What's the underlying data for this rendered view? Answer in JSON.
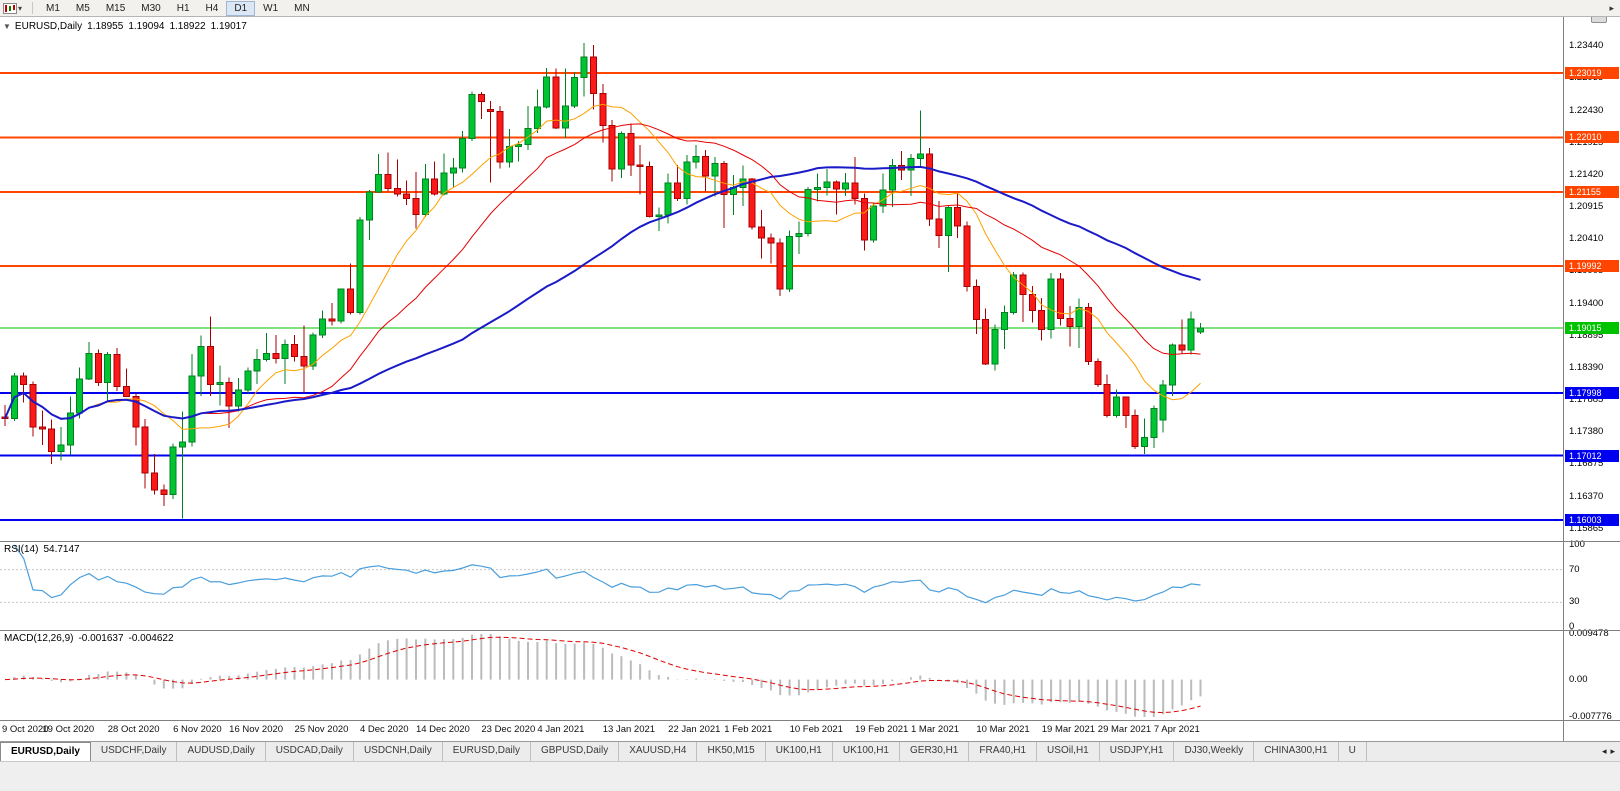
{
  "toolbar": {
    "timeframes": [
      "M1",
      "M5",
      "M15",
      "M30",
      "H1",
      "H4",
      "D1",
      "W1",
      "MN"
    ],
    "active_timeframe": "D1"
  },
  "icons": {
    "collapse": "▼",
    "toolbar_overflow": "▸",
    "tab_scroll_left": "◂",
    "tab_scroll_right": "▸"
  },
  "chart_header": {
    "symbol_period": "EURUSD,Daily",
    "open": "1.18955",
    "high": "1.19094",
    "low": "1.18922",
    "close": "1.19017"
  },
  "panels": {
    "rsi": {
      "name": "RSI(14)",
      "value": "54.7147"
    },
    "macd": {
      "name": "MACD(12,26,9)",
      "value_main": "-0.001637",
      "value_signal": "-0.004622"
    }
  },
  "chart_data": {
    "type": "candlestick",
    "symbol": "EURUSD",
    "timeframe": "Daily",
    "price_axis": {
      "max": 1.239,
      "min": 1.1572,
      "ticks": [
        "1.23440",
        "1.22935",
        "1.22430",
        "1.21925",
        "1.21420",
        "1.20915",
        "1.20410",
        "1.19905",
        "1.19400",
        "1.18895",
        "1.18390",
        "1.17885",
        "1.17380",
        "1.16875",
        "1.16370",
        "1.15865"
      ]
    },
    "colors": {
      "up_fill": "#00C432",
      "up_stroke": "#008021",
      "down_fill": "#FA1A1A",
      "down_stroke": "#A80000",
      "background": "#FFFFFF"
    },
    "h_lines": [
      {
        "price": 1.23019,
        "label": "1.23019",
        "color": "#FF4500",
        "width": 2
      },
      {
        "price": 1.2201,
        "label": "1.22010",
        "color": "#FF4500",
        "width": 2
      },
      {
        "price": 1.21155,
        "label": "1.21155",
        "color": "#FF4500",
        "width": 2
      },
      {
        "price": 1.19992,
        "label": "1.19992",
        "color": "#FF4500",
        "width": 2
      },
      {
        "price": 1.19015,
        "label": "1.19015",
        "color": "#00C300",
        "width": 1
      },
      {
        "price": 1.17998,
        "label": "1.17998",
        "color": "#0000F0",
        "width": 2
      },
      {
        "price": 1.17012,
        "label": "1.17012",
        "color": "#0000F0",
        "width": 2
      },
      {
        "price": 1.16003,
        "label": "1.16003",
        "color": "#0000F0",
        "width": 2
      }
    ],
    "moving_averages": [
      {
        "period": 10,
        "color": "#FFA000",
        "width": 1
      },
      {
        "period": 21,
        "color": "#E60000",
        "width": 1
      },
      {
        "period": 50,
        "color": "#1A1AC8",
        "width": 2
      }
    ],
    "rsi": {
      "period": 14,
      "color": "#4A9EDC",
      "range": [
        0,
        100
      ],
      "levels": [
        "100",
        "70",
        "30",
        "0"
      ],
      "level_lines": [
        70,
        30
      ]
    },
    "macd": {
      "fast": 12,
      "slow": 26,
      "signal_period": 9,
      "histogram_color": "#BBBBBB",
      "signal_color": "#E00000",
      "range": [
        -0.007776,
        0.009478
      ],
      "axis_labels": [
        "0.009478",
        "0.00",
        "-0.007776"
      ]
    },
    "x_labels": [
      [
        "9 Oct 2020",
        1
      ],
      [
        "19 Oct 2020",
        7
      ],
      [
        "28 Oct 2020",
        14
      ],
      [
        "6 Nov 2020",
        21
      ],
      [
        "16 Nov 2020",
        27
      ],
      [
        "25 Nov 2020",
        34
      ],
      [
        "4 Dec 2020",
        41
      ],
      [
        "14 Dec 2020",
        47
      ],
      [
        "23 Dec 2020",
        54
      ],
      [
        "4 Jan 2021",
        60
      ],
      [
        "13 Jan 2021",
        67
      ],
      [
        "22 Jan 2021",
        74
      ],
      [
        "1 Feb 2021",
        80
      ],
      [
        "10 Feb 2021",
        87
      ],
      [
        "19 Feb 2021",
        94
      ],
      [
        "1 Mar 2021",
        100
      ],
      [
        "10 Mar 2021",
        107
      ],
      [
        "19 Mar 2021",
        114
      ],
      [
        "29 Mar 2021",
        120
      ],
      [
        "7 Apr 2021",
        126
      ]
    ],
    "ohlc": [
      [
        1.1762,
        1.1781,
        1.1748,
        1.176
      ],
      [
        1.176,
        1.1831,
        1.1756,
        1.1826
      ],
      [
        1.1826,
        1.1832,
        1.1785,
        1.1813
      ],
      [
        1.1813,
        1.1818,
        1.1731,
        1.1746
      ],
      [
        1.1746,
        1.1772,
        1.1718,
        1.1743
      ],
      [
        1.1743,
        1.1758,
        1.1688,
        1.1708
      ],
      [
        1.1708,
        1.1746,
        1.1694,
        1.1718
      ],
      [
        1.1718,
        1.1794,
        1.1703,
        1.1768
      ],
      [
        1.1768,
        1.184,
        1.176,
        1.1822
      ],
      [
        1.1822,
        1.188,
        1.182,
        1.1862
      ],
      [
        1.1862,
        1.1868,
        1.1811,
        1.1816
      ],
      [
        1.1816,
        1.1864,
        1.1786,
        1.186
      ],
      [
        1.186,
        1.187,
        1.1803,
        1.181
      ],
      [
        1.181,
        1.1838,
        1.1793,
        1.1794
      ],
      [
        1.1794,
        1.18,
        1.1717,
        1.1746
      ],
      [
        1.1746,
        1.1759,
        1.165,
        1.1674
      ],
      [
        1.1674,
        1.1704,
        1.164,
        1.1647
      ],
      [
        1.1647,
        1.1656,
        1.1622,
        1.164
      ],
      [
        1.164,
        1.172,
        1.1633,
        1.1715
      ],
      [
        1.1715,
        1.1771,
        1.1603,
        1.1723
      ],
      [
        1.1723,
        1.1861,
        1.1716,
        1.1826
      ],
      [
        1.1826,
        1.189,
        1.1795,
        1.1873
      ],
      [
        1.1873,
        1.192,
        1.1795,
        1.1813
      ],
      [
        1.1813,
        1.1843,
        1.178,
        1.1816
      ],
      [
        1.1816,
        1.1824,
        1.1745,
        1.1779
      ],
      [
        1.1779,
        1.1823,
        1.1771,
        1.1804
      ],
      [
        1.1804,
        1.184,
        1.1799,
        1.1834
      ],
      [
        1.1834,
        1.1869,
        1.1814,
        1.1852
      ],
      [
        1.1852,
        1.1894,
        1.1849,
        1.1862
      ],
      [
        1.1862,
        1.1891,
        1.1846,
        1.1854
      ],
      [
        1.1854,
        1.1884,
        1.1814,
        1.1876
      ],
      [
        1.1876,
        1.1891,
        1.1849,
        1.1857
      ],
      [
        1.1857,
        1.1906,
        1.18,
        1.1842
      ],
      [
        1.1842,
        1.1895,
        1.1836,
        1.1891
      ],
      [
        1.1891,
        1.1929,
        1.1886,
        1.1916
      ],
      [
        1.1916,
        1.1941,
        1.1906,
        1.1913
      ],
      [
        1.1913,
        1.1964,
        1.1909,
        1.1963
      ],
      [
        1.1963,
        1.2003,
        1.1923,
        1.1926
      ],
      [
        1.1926,
        1.2076,
        1.1923,
        1.2071
      ],
      [
        1.2071,
        1.2118,
        1.204,
        1.2115
      ],
      [
        1.2115,
        1.2175,
        1.2114,
        1.2143
      ],
      [
        1.2143,
        1.2177,
        1.2117,
        1.2121
      ],
      [
        1.2121,
        1.2166,
        1.2108,
        1.2112
      ],
      [
        1.2112,
        1.2133,
        1.2095,
        1.2105
      ],
      [
        1.2105,
        1.2147,
        1.2058,
        1.208
      ],
      [
        1.208,
        1.2159,
        1.2076,
        1.2136
      ],
      [
        1.2136,
        1.2163,
        1.211,
        1.2112
      ],
      [
        1.2112,
        1.2176,
        1.211,
        1.2145
      ],
      [
        1.2145,
        1.2169,
        1.2123,
        1.2153
      ],
      [
        1.2153,
        1.2211,
        1.2146,
        1.2199
      ],
      [
        1.2199,
        1.2273,
        1.2195,
        1.2268
      ],
      [
        1.2268,
        1.2272,
        1.223,
        1.2257
      ],
      [
        1.2245,
        1.2258,
        1.213,
        1.2242
      ],
      [
        1.2242,
        1.225,
        1.2152,
        1.2162
      ],
      [
        1.2162,
        1.2214,
        1.2154,
        1.2187
      ],
      [
        1.2187,
        1.2195,
        1.2163,
        1.219
      ],
      [
        1.219,
        1.225,
        1.2181,
        1.2215
      ],
      [
        1.2215,
        1.2276,
        1.2208,
        1.2249
      ],
      [
        1.2249,
        1.231,
        1.2246,
        1.2296
      ],
      [
        1.2296,
        1.2309,
        1.2214,
        1.2216
      ],
      [
        1.2216,
        1.2309,
        1.22,
        1.225
      ],
      [
        1.225,
        1.2304,
        1.2247,
        1.2295
      ],
      [
        1.2295,
        1.2349,
        1.2265,
        1.2327
      ],
      [
        1.2327,
        1.2346,
        1.2245,
        1.227
      ],
      [
        1.227,
        1.2285,
        1.2193,
        1.222
      ],
      [
        1.222,
        1.2228,
        1.2132,
        1.2151
      ],
      [
        1.2151,
        1.221,
        1.2137,
        1.2207
      ],
      [
        1.2207,
        1.2223,
        1.214,
        1.2158
      ],
      [
        1.2158,
        1.2189,
        1.2111,
        1.2155
      ],
      [
        1.2155,
        1.2163,
        1.2075,
        1.2077
      ],
      [
        1.2077,
        1.2091,
        1.2054,
        1.2079
      ],
      [
        1.2079,
        1.2144,
        1.2066,
        1.2129
      ],
      [
        1.2129,
        1.2158,
        1.2101,
        1.2105
      ],
      [
        1.2105,
        1.2173,
        1.2096,
        1.2162
      ],
      [
        1.2162,
        1.2189,
        1.2152,
        1.2171
      ],
      [
        1.2171,
        1.2181,
        1.2116,
        1.214
      ],
      [
        1.214,
        1.217,
        1.2108,
        1.216
      ],
      [
        1.216,
        1.2164,
        1.2059,
        1.2111
      ],
      [
        1.2111,
        1.2142,
        1.2079,
        1.2122
      ],
      [
        1.2122,
        1.2157,
        1.2093,
        1.2136
      ],
      [
        1.2136,
        1.2137,
        1.2056,
        1.206
      ],
      [
        1.206,
        1.2087,
        1.2011,
        1.2043
      ],
      [
        1.2043,
        1.205,
        1.2003,
        1.2035
      ],
      [
        1.2035,
        1.2042,
        1.1952,
        1.1963
      ],
      [
        1.1963,
        1.2055,
        1.1958,
        1.2045
      ],
      [
        1.2045,
        1.2069,
        1.2018,
        1.205
      ],
      [
        1.205,
        1.2123,
        1.2045,
        1.2119
      ],
      [
        1.2119,
        1.2144,
        1.21,
        1.2122
      ],
      [
        1.2122,
        1.2151,
        1.211,
        1.2131
      ],
      [
        1.2131,
        1.2133,
        1.208,
        1.212
      ],
      [
        1.212,
        1.2145,
        1.2109,
        1.2129
      ],
      [
        1.2129,
        1.217,
        1.2096,
        1.2105
      ],
      [
        1.2105,
        1.2113,
        1.2023,
        1.204
      ],
      [
        1.204,
        1.2097,
        1.2036,
        1.2093
      ],
      [
        1.2093,
        1.2144,
        1.2082,
        1.2118
      ],
      [
        1.2118,
        1.2167,
        1.2092,
        1.2157
      ],
      [
        1.2157,
        1.218,
        1.2134,
        1.215
      ],
      [
        1.215,
        1.2175,
        1.2109,
        1.2168
      ],
      [
        1.2168,
        1.2243,
        1.2155,
        1.2175
      ],
      [
        1.2175,
        1.2184,
        1.2062,
        1.2073
      ],
      [
        1.2073,
        1.2101,
        1.2027,
        1.2047
      ],
      [
        1.2047,
        1.2094,
        1.199,
        1.2091
      ],
      [
        1.2091,
        1.2113,
        1.2043,
        1.2062
      ],
      [
        1.2062,
        1.2069,
        1.1959,
        1.1967
      ],
      [
        1.1967,
        1.1978,
        1.1892,
        1.1915
      ],
      [
        1.1915,
        1.1932,
        1.1844,
        1.1845
      ],
      [
        1.1845,
        1.1907,
        1.1835,
        1.1899
      ],
      [
        1.1899,
        1.1937,
        1.1869,
        1.1926
      ],
      [
        1.1926,
        1.199,
        1.1923,
        1.1985
      ],
      [
        1.1985,
        1.1989,
        1.1911,
        1.1954
      ],
      [
        1.1954,
        1.1968,
        1.191,
        1.1929
      ],
      [
        1.1929,
        1.1949,
        1.1882,
        1.1899
      ],
      [
        1.1899,
        1.1988,
        1.1885,
        1.1979
      ],
      [
        1.1979,
        1.1988,
        1.1906,
        1.1917
      ],
      [
        1.1917,
        1.1936,
        1.1873,
        1.1904
      ],
      [
        1.1904,
        1.1948,
        1.187,
        1.1934
      ],
      [
        1.1934,
        1.1941,
        1.1844,
        1.1849
      ],
      [
        1.1849,
        1.1854,
        1.1809,
        1.1813
      ],
      [
        1.1813,
        1.1829,
        1.1761,
        1.1764
      ],
      [
        1.1764,
        1.1805,
        1.1761,
        1.1793
      ],
      [
        1.1793,
        1.1794,
        1.1745,
        1.1764
      ],
      [
        1.1764,
        1.1774,
        1.1712,
        1.1716
      ],
      [
        1.1716,
        1.176,
        1.1704,
        1.173
      ],
      [
        1.173,
        1.178,
        1.1713,
        1.1775
      ],
      [
        1.1757,
        1.182,
        1.1738,
        1.1812
      ],
      [
        1.1812,
        1.1877,
        1.1795,
        1.1875
      ],
      [
        1.1875,
        1.1915,
        1.1861,
        1.1867
      ],
      [
        1.1867,
        1.1928,
        1.186,
        1.1916
      ],
      [
        1.18955,
        1.19094,
        1.18922,
        1.19017
      ]
    ]
  },
  "tabs": {
    "active_index": 0,
    "items": [
      "EURUSD,Daily",
      "USDCHF,Daily",
      "AUDUSD,Daily",
      "USDCAD,Daily",
      "USDCNH,Daily",
      "EURUSD,Daily",
      "GBPUSD,Daily",
      "XAUUSD,H4",
      "HK50,M15",
      "UK100,H1",
      "UK100,H1",
      "GER30,H1",
      "FRA40,H1",
      "USOil,H1",
      "USDJPY,H1",
      "DJ30,Weekly",
      "CHINA300,H1",
      "U"
    ]
  }
}
